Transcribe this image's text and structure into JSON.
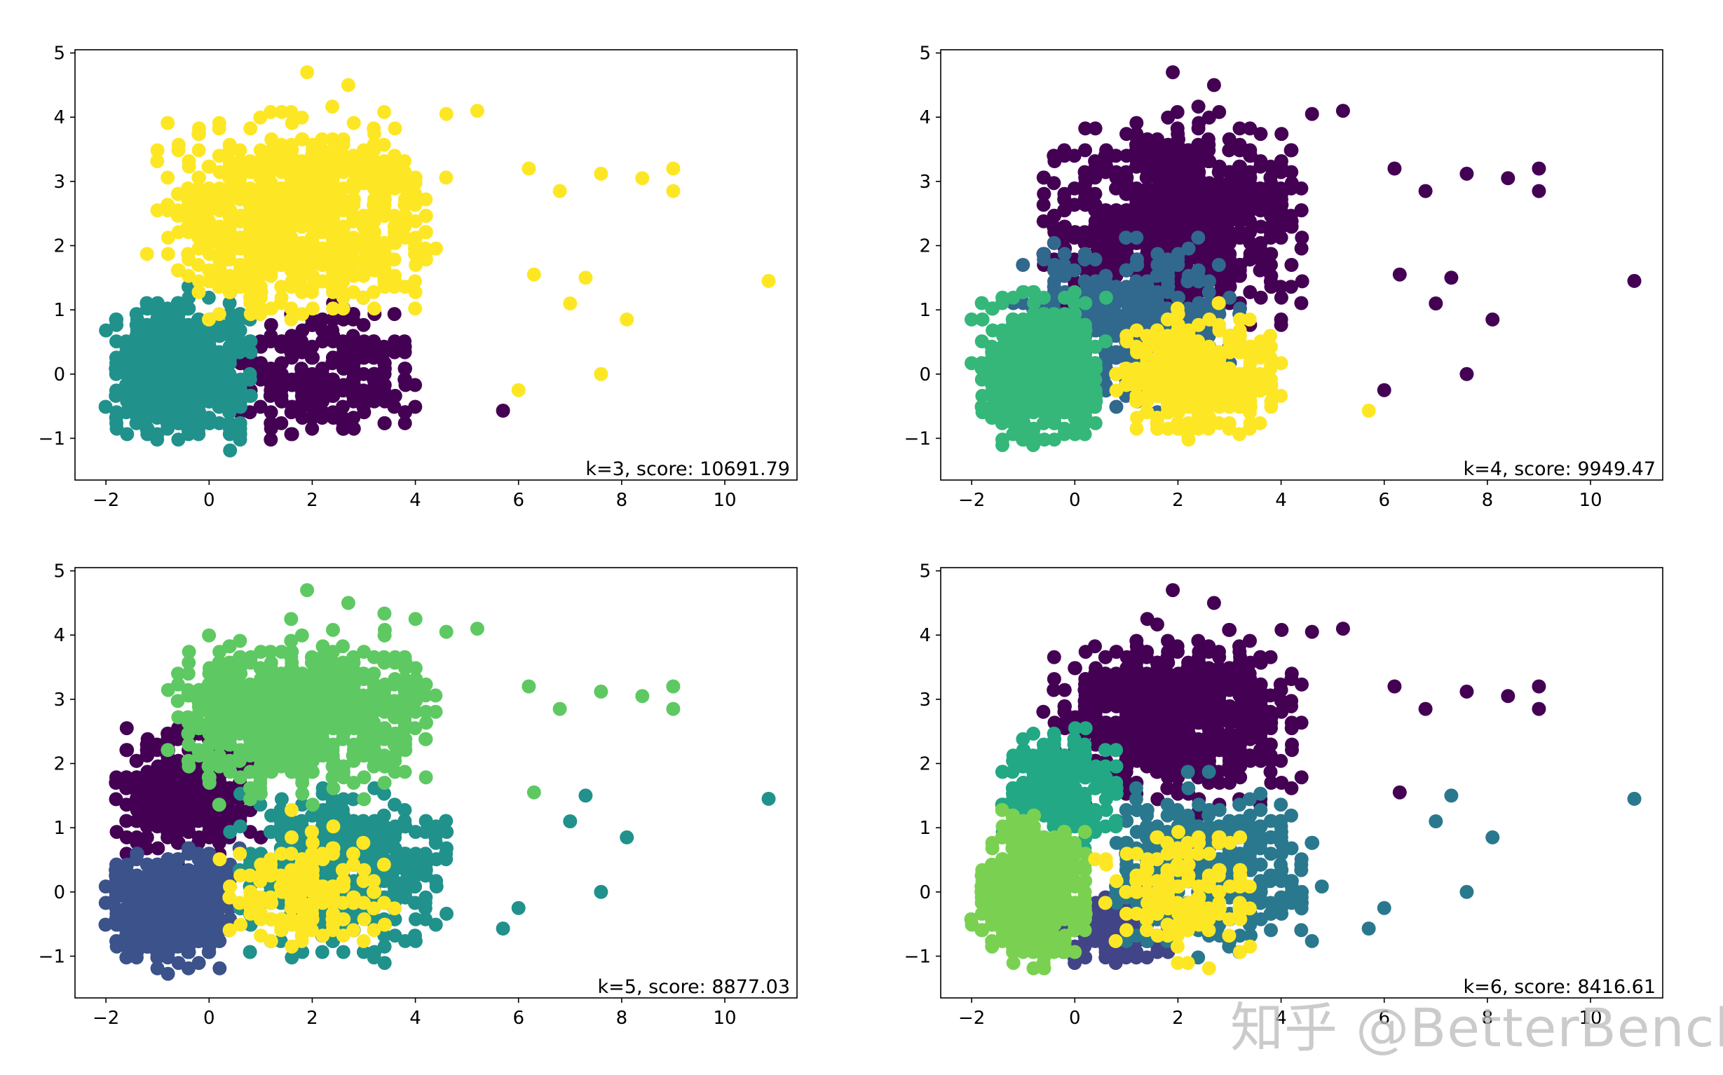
{
  "watermark": "知乎 @BetterBench",
  "palette": {
    "k3": [
      "#440154",
      "#21918c",
      "#fde725"
    ],
    "k4": [
      "#440154",
      "#31688e",
      "#35b779",
      "#fde725"
    ],
    "k5": [
      "#440154",
      "#3b528b",
      "#21918c",
      "#5ec962",
      "#fde725"
    ],
    "k6": [
      "#440154",
      "#414487",
      "#2a788e",
      "#22a884",
      "#7ad151",
      "#fde725"
    ]
  },
  "chart_data": [
    {
      "type": "scatter",
      "k": 3,
      "annotation": "k=3, score: 10691.79",
      "xlim": [
        -2.6,
        11.4
      ],
      "ylim": [
        -1.65,
        5.05
      ],
      "xticks": [
        -2,
        0,
        2,
        4,
        6,
        8,
        10
      ],
      "yticks": [
        -1,
        0,
        1,
        2,
        3,
        4,
        5
      ],
      "xtick_labels": [
        "−2",
        "0",
        "2",
        "4",
        "6",
        "8",
        "10"
      ],
      "ytick_labels": [
        "−1",
        "0",
        "1",
        "2",
        "3",
        "4",
        "5"
      ],
      "grid": false,
      "clusters": [
        {
          "color": "#440154",
          "x_range": [
            0.3,
            4.2
          ],
          "y_range": [
            -1.35,
            1.35
          ],
          "count": 260
        },
        {
          "color": "#21918c",
          "x_range": [
            -2.0,
            0.9
          ],
          "y_range": [
            -1.35,
            1.5
          ],
          "count": 700
        },
        {
          "color": "#fde725",
          "x_range": [
            -1.2,
            4.6
          ],
          "y_range": [
            0.5,
            4.4
          ],
          "count": 900
        }
      ],
      "outliers": [
        {
          "x": 10.85,
          "y": 1.45,
          "c": 2
        },
        {
          "x": 9.0,
          "y": 3.2,
          "c": 2
        },
        {
          "x": 9.0,
          "y": 2.85,
          "c": 2
        },
        {
          "x": 8.4,
          "y": 3.05,
          "c": 2
        },
        {
          "x": 7.6,
          "y": 3.12,
          "c": 2
        },
        {
          "x": 7.6,
          "y": 0.0,
          "c": 2
        },
        {
          "x": 8.1,
          "y": 0.85,
          "c": 2
        },
        {
          "x": 7.3,
          "y": 1.5,
          "c": 2
        },
        {
          "x": 7.0,
          "y": 1.1,
          "c": 2
        },
        {
          "x": 6.8,
          "y": 2.85,
          "c": 2
        },
        {
          "x": 6.0,
          "y": -0.25,
          "c": 2
        },
        {
          "x": 5.7,
          "y": -0.57,
          "c": 0
        },
        {
          "x": 6.2,
          "y": 3.2,
          "c": 2
        },
        {
          "x": 1.9,
          "y": 4.7,
          "c": 2
        },
        {
          "x": 2.7,
          "y": 4.5,
          "c": 2
        },
        {
          "x": 4.6,
          "y": 4.05,
          "c": 2
        },
        {
          "x": 5.2,
          "y": 4.1,
          "c": 2
        },
        {
          "x": 6.3,
          "y": 1.55,
          "c": 2
        }
      ]
    },
    {
      "type": "scatter",
      "k": 4,
      "annotation": "k=4, score: 9949.47",
      "xlim": [
        -2.6,
        11.4
      ],
      "ylim": [
        -1.65,
        5.05
      ],
      "xticks": [
        -2,
        0,
        2,
        4,
        6,
        8,
        10
      ],
      "yticks": [
        -1,
        0,
        1,
        2,
        3,
        4,
        5
      ],
      "xtick_labels": [
        "−2",
        "0",
        "2",
        "4",
        "6",
        "8",
        "10"
      ],
      "ytick_labels": [
        "−1",
        "0",
        "1",
        "2",
        "3",
        "4",
        "5"
      ],
      "grid": false,
      "clusters": [
        {
          "color": "#440154",
          "x_range": [
            -0.8,
            4.6
          ],
          "y_range": [
            0.4,
            4.4
          ],
          "count": 820
        },
        {
          "color": "#31688e",
          "x_range": [
            -1.4,
            3.5
          ],
          "y_range": [
            -0.9,
            2.4
          ],
          "count": 420
        },
        {
          "color": "#35b779",
          "x_range": [
            -2.0,
            0.6
          ],
          "y_range": [
            -1.35,
            1.5
          ],
          "count": 620
        },
        {
          "color": "#fde725",
          "x_range": [
            0.6,
            4.2
          ],
          "y_range": [
            -1.35,
            1.3
          ],
          "count": 330
        }
      ],
      "outliers": [
        {
          "x": 10.85,
          "y": 1.45,
          "c": 0
        },
        {
          "x": 9.0,
          "y": 3.2,
          "c": 0
        },
        {
          "x": 9.0,
          "y": 2.85,
          "c": 0
        },
        {
          "x": 8.4,
          "y": 3.05,
          "c": 0
        },
        {
          "x": 7.6,
          "y": 3.12,
          "c": 0
        },
        {
          "x": 7.6,
          "y": 0.0,
          "c": 0
        },
        {
          "x": 8.1,
          "y": 0.85,
          "c": 0
        },
        {
          "x": 7.3,
          "y": 1.5,
          "c": 0
        },
        {
          "x": 7.0,
          "y": 1.1,
          "c": 0
        },
        {
          "x": 6.8,
          "y": 2.85,
          "c": 0
        },
        {
          "x": 6.0,
          "y": -0.25,
          "c": 0
        },
        {
          "x": 5.7,
          "y": -0.57,
          "c": 3
        },
        {
          "x": 6.2,
          "y": 3.2,
          "c": 0
        },
        {
          "x": 1.9,
          "y": 4.7,
          "c": 0
        },
        {
          "x": 2.7,
          "y": 4.5,
          "c": 0
        },
        {
          "x": 4.6,
          "y": 4.05,
          "c": 0
        },
        {
          "x": 5.2,
          "y": 4.1,
          "c": 0
        },
        {
          "x": 6.3,
          "y": 1.55,
          "c": 0
        }
      ]
    },
    {
      "type": "scatter",
      "k": 5,
      "annotation": "k=5, score: 8877.03",
      "xlim": [
        -2.6,
        11.4
      ],
      "ylim": [
        -1.65,
        5.05
      ],
      "xticks": [
        -2,
        0,
        2,
        4,
        6,
        8,
        10
      ],
      "yticks": [
        -1,
        0,
        1,
        2,
        3,
        4,
        5
      ],
      "xtick_labels": [
        "−2",
        "0",
        "2",
        "4",
        "6",
        "8",
        "10"
      ],
      "ytick_labels": [
        "−1",
        "0",
        "1",
        "2",
        "3",
        "4",
        "5"
      ],
      "grid": false,
      "clusters": [
        {
          "color": "#440154",
          "x_range": [
            -2.0,
            1.0
          ],
          "y_range": [
            0.3,
            2.8
          ],
          "count": 330
        },
        {
          "color": "#3b528b",
          "x_range": [
            -2.0,
            0.6
          ],
          "y_range": [
            -1.35,
            0.9
          ],
          "count": 520
        },
        {
          "color": "#21918c",
          "x_range": [
            0.3,
            4.8
          ],
          "y_range": [
            -1.35,
            2.0
          ],
          "count": 520
        },
        {
          "color": "#5ec962",
          "x_range": [
            -1.0,
            4.6
          ],
          "y_range": [
            1.2,
            4.4
          ],
          "count": 700
        },
        {
          "color": "#fde725",
          "x_range": [
            0.0,
            3.6
          ],
          "y_range": [
            -1.3,
            1.4
          ],
          "count": 170
        }
      ],
      "outliers": [
        {
          "x": 10.85,
          "y": 1.45,
          "c": 2
        },
        {
          "x": 9.0,
          "y": 3.2,
          "c": 3
        },
        {
          "x": 9.0,
          "y": 2.85,
          "c": 3
        },
        {
          "x": 8.4,
          "y": 3.05,
          "c": 3
        },
        {
          "x": 7.6,
          "y": 3.12,
          "c": 3
        },
        {
          "x": 7.6,
          "y": 0.0,
          "c": 2
        },
        {
          "x": 8.1,
          "y": 0.85,
          "c": 2
        },
        {
          "x": 7.3,
          "y": 1.5,
          "c": 2
        },
        {
          "x": 7.0,
          "y": 1.1,
          "c": 2
        },
        {
          "x": 6.8,
          "y": 2.85,
          "c": 3
        },
        {
          "x": 6.0,
          "y": -0.25,
          "c": 2
        },
        {
          "x": 5.7,
          "y": -0.57,
          "c": 2
        },
        {
          "x": 6.2,
          "y": 3.2,
          "c": 3
        },
        {
          "x": 1.9,
          "y": 4.7,
          "c": 3
        },
        {
          "x": 2.7,
          "y": 4.5,
          "c": 3
        },
        {
          "x": 4.6,
          "y": 4.05,
          "c": 3
        },
        {
          "x": 5.2,
          "y": 4.1,
          "c": 3
        },
        {
          "x": 6.3,
          "y": 1.55,
          "c": 3
        }
      ]
    },
    {
      "type": "scatter",
      "k": 6,
      "annotation": "k=6, score: 8416.61",
      "xlim": [
        -2.6,
        11.4
      ],
      "ylim": [
        -1.65,
        5.05
      ],
      "xticks": [
        -2,
        0,
        2,
        4,
        6,
        8,
        10
      ],
      "yticks": [
        -1,
        0,
        1,
        2,
        3,
        4,
        5
      ],
      "xtick_labels": [
        "−2",
        "0",
        "2",
        "4",
        "6",
        "8",
        "10"
      ],
      "ytick_labels": [
        "−1",
        "0",
        "1",
        "2",
        "3",
        "4",
        "5"
      ],
      "grid": false,
      "clusters": [
        {
          "color": "#440154",
          "x_range": [
            -0.7,
            4.6
          ],
          "y_range": [
            1.0,
            4.4
          ],
          "count": 720
        },
        {
          "color": "#414487",
          "x_range": [
            -0.5,
            2.2
          ],
          "y_range": [
            -1.35,
            0.2
          ],
          "count": 170
        },
        {
          "color": "#2a788e",
          "x_range": [
            0.5,
            4.8
          ],
          "y_range": [
            -1.2,
            1.9
          ],
          "count": 480
        },
        {
          "color": "#22a884",
          "x_range": [
            -1.6,
            1.0
          ],
          "y_range": [
            0.6,
            2.7
          ],
          "count": 280
        },
        {
          "color": "#7ad151",
          "x_range": [
            -2.0,
            0.4
          ],
          "y_range": [
            -1.35,
            1.5
          ],
          "count": 540
        },
        {
          "color": "#fde725",
          "x_range": [
            0.4,
            3.8
          ],
          "y_range": [
            -1.3,
            1.3
          ],
          "count": 150
        }
      ],
      "outliers": [
        {
          "x": 10.85,
          "y": 1.45,
          "c": 2
        },
        {
          "x": 9.0,
          "y": 3.2,
          "c": 0
        },
        {
          "x": 9.0,
          "y": 2.85,
          "c": 0
        },
        {
          "x": 8.4,
          "y": 3.05,
          "c": 0
        },
        {
          "x": 7.6,
          "y": 3.12,
          "c": 0
        },
        {
          "x": 7.6,
          "y": 0.0,
          "c": 2
        },
        {
          "x": 8.1,
          "y": 0.85,
          "c": 2
        },
        {
          "x": 7.3,
          "y": 1.5,
          "c": 2
        },
        {
          "x": 7.0,
          "y": 1.1,
          "c": 2
        },
        {
          "x": 6.8,
          "y": 2.85,
          "c": 0
        },
        {
          "x": 6.0,
          "y": -0.25,
          "c": 2
        },
        {
          "x": 5.7,
          "y": -0.57,
          "c": 2
        },
        {
          "x": 6.2,
          "y": 3.2,
          "c": 0
        },
        {
          "x": 1.9,
          "y": 4.7,
          "c": 0
        },
        {
          "x": 2.7,
          "y": 4.5,
          "c": 0
        },
        {
          "x": 4.6,
          "y": 4.05,
          "c": 0
        },
        {
          "x": 5.2,
          "y": 4.1,
          "c": 0
        },
        {
          "x": 6.3,
          "y": 1.55,
          "c": 0
        }
      ]
    }
  ]
}
